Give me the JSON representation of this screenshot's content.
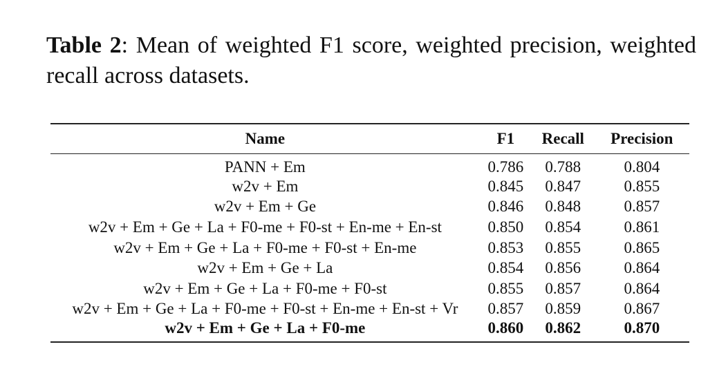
{
  "caption": {
    "label": "Table 2",
    "text": ": Mean of weighted F1 score, weighted precision, weighted recall across datasets."
  },
  "table": {
    "headers": {
      "name": "Name",
      "f1": "F1",
      "recall": "Recall",
      "precision": "Precision"
    },
    "rows": [
      {
        "name": "PANN + Em",
        "f1": "0.786",
        "recall": "0.788",
        "precision": "0.804"
      },
      {
        "name": "w2v + Em",
        "f1": "0.845",
        "recall": "0.847",
        "precision": "0.855"
      },
      {
        "name": "w2v + Em + Ge",
        "f1": "0.846",
        "recall": "0.848",
        "precision": "0.857"
      },
      {
        "name": "w2v + Em + Ge + La + F0-me + F0-st + En-me + En-st",
        "f1": "0.850",
        "recall": "0.854",
        "precision": "0.861"
      },
      {
        "name": "w2v + Em + Ge + La + F0-me + F0-st + En-me",
        "f1": "0.853",
        "recall": "0.855",
        "precision": "0.865"
      },
      {
        "name": "w2v + Em + Ge + La",
        "f1": "0.854",
        "recall": "0.856",
        "precision": "0.864"
      },
      {
        "name": "w2v + Em + Ge + La + F0-me + F0-st",
        "f1": "0.855",
        "recall": "0.857",
        "precision": "0.864"
      },
      {
        "name": "w2v + Em + Ge + La + F0-me + F0-st + En-me + En-st + Vr",
        "f1": "0.857",
        "recall": "0.859",
        "precision": "0.867"
      },
      {
        "name": "w2v + Em + Ge + La + F0-me",
        "f1": "0.860",
        "recall": "0.862",
        "precision": "0.870",
        "best": true
      }
    ]
  }
}
